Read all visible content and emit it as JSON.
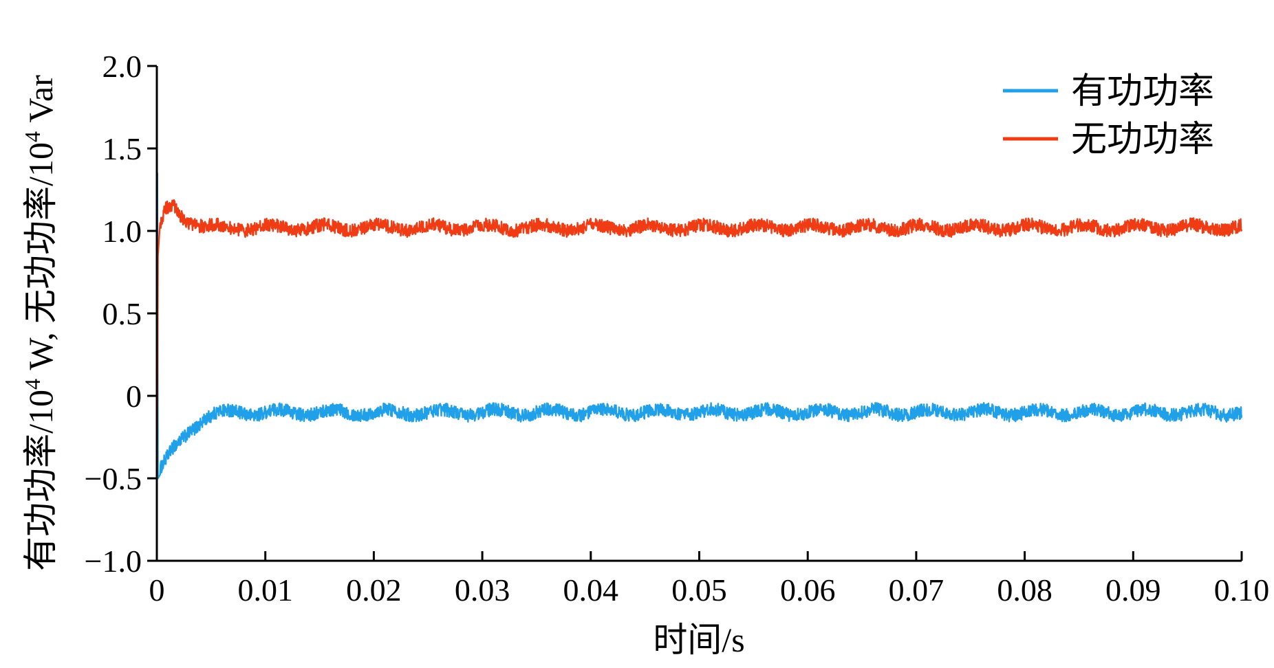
{
  "chart_data": {
    "type": "line",
    "title": "",
    "xlabel": "时间/s",
    "ylabel": {
      "parts": [
        "有功功率/10",
        "4",
        " W, 无功功率/10",
        "4",
        " Var"
      ]
    },
    "xlim": [
      0,
      0.1
    ],
    "ylim": [
      -1.0,
      2.0
    ],
    "x_ticks": [
      0,
      0.01,
      0.02,
      0.03,
      0.04,
      0.05,
      0.06,
      0.07,
      0.08,
      0.09,
      0.1
    ],
    "x_tick_labels": [
      "0",
      "0.01",
      "0.02",
      "0.03",
      "0.04",
      "0.05",
      "0.06",
      "0.07",
      "0.08",
      "0.09",
      "0.10"
    ],
    "y_ticks": [
      -1.0,
      -0.5,
      0,
      0.5,
      1.0,
      1.5,
      2.0
    ],
    "y_tick_labels": [
      "−1.0",
      "−0.5",
      "0",
      "0.5",
      "1.0",
      "1.5",
      "2.0"
    ],
    "grid": false,
    "legend_position": "top-right",
    "series": [
      {
        "name": "有功功率",
        "color": "#1fa0e8",
        "x": [
          0,
          5e-05,
          0.0001,
          0.0003,
          0.0008,
          0.0015,
          0.0025,
          0.0035,
          0.0045,
          0.0055,
          0.007,
          0.01,
          0.02,
          0.03,
          0.04,
          0.05,
          0.06,
          0.07,
          0.08,
          0.09,
          0.1
        ],
        "values": [
          -1.0,
          1.35,
          -0.5,
          -0.45,
          -0.4,
          -0.33,
          -0.25,
          -0.18,
          -0.13,
          -0.11,
          -0.1,
          -0.1,
          -0.1,
          -0.1,
          -0.1,
          -0.1,
          -0.1,
          -0.1,
          -0.1,
          -0.1,
          -0.1
        ],
        "ripple_amplitude": 0.04
      },
      {
        "name": "无功功率",
        "color": "#f03c14",
        "x": [
          0,
          5e-05,
          0.0001,
          0.0003,
          0.0008,
          0.0015,
          0.0025,
          0.0035,
          0.0045,
          0.006,
          0.01,
          0.02,
          0.03,
          0.04,
          0.05,
          0.06,
          0.07,
          0.08,
          0.09,
          0.1
        ],
        "values": [
          -0.68,
          0.0,
          0.85,
          1.02,
          1.12,
          1.15,
          1.08,
          1.05,
          1.02,
          1.02,
          1.02,
          1.02,
          1.02,
          1.02,
          1.02,
          1.02,
          1.02,
          1.02,
          1.02,
          1.02
        ],
        "ripple_amplitude": 0.04
      }
    ]
  }
}
